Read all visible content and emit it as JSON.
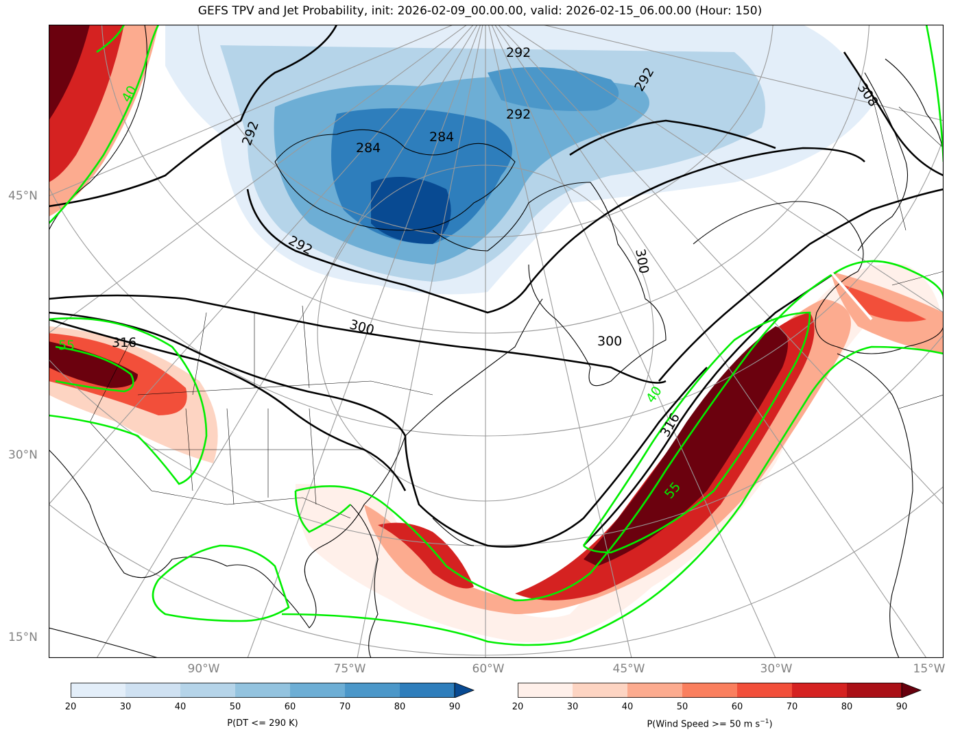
{
  "title": "GEFS TPV and Jet Probability, init: 2026-02-09_00.00.00, valid: 2026-02-15_06.00.00 (Hour: 150)",
  "lat_labels": [
    "45°N",
    "30°N",
    "15°N"
  ],
  "lon_labels": [
    "90°W",
    "75°W",
    "60°W",
    "45°W",
    "30°W",
    "15°W"
  ],
  "theta_labels": [
    "292",
    "292",
    "292",
    "292",
    "292",
    "284",
    "284",
    "300",
    "300",
    "300",
    "316",
    "316",
    "308"
  ],
  "wind_labels": [
    "55",
    "40",
    "55",
    "40"
  ],
  "colorbar_dt": {
    "label": "P(DT <= 290 K)",
    "ticks": [
      "20",
      "30",
      "40",
      "50",
      "60",
      "70",
      "80",
      "90"
    ],
    "colors": [
      "#e3eef9",
      "#cfe1f2",
      "#b5d4e9",
      "#93c3df",
      "#6daed5",
      "#4b97c9",
      "#2e7ebc",
      "#1764ab",
      "#084a92"
    ]
  },
  "colorbar_wind": {
    "label_main": "P(Wind Speed >= 50 m s",
    "label_sup": "−1",
    "label_end": ")",
    "ticks": [
      "20",
      "30",
      "40",
      "50",
      "60",
      "70",
      "80",
      "90"
    ],
    "colors": [
      "#fff0ea",
      "#fdd4c2",
      "#fcab8f",
      "#fa7f5e",
      "#f24f3a",
      "#d52221",
      "#aa1016",
      "#6b010e",
      "#67000d"
    ]
  },
  "colors": {
    "jet_contour": "#00ee00",
    "theta_contour": "#000000",
    "graticule": "#9a9a9a"
  }
}
